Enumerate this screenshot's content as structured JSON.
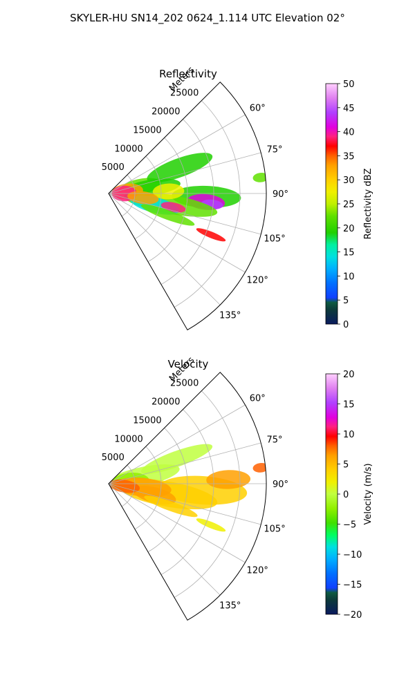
{
  "suptitle": "SKYLER-HU  SN14_202  0624_1.114 UTC Elevation 02°",
  "chart_data": [
    {
      "type": "heatmap",
      "projection": "polar-sector",
      "title": "Reflectivity",
      "range_label": "Meters",
      "range_max": 30000,
      "range_ticks": [
        5000,
        10000,
        15000,
        20000,
        25000
      ],
      "range_tick_labels": [
        "5000",
        "10000",
        "15000",
        "20000",
        "25000"
      ],
      "azimuth_range_deg": [
        45,
        150
      ],
      "azimuth_ticks": [
        60,
        75,
        90,
        105,
        120,
        135
      ],
      "azimuth_tick_labels": [
        "60°",
        "75°",
        "90°",
        "105°",
        "120°",
        "135°"
      ],
      "grid": true,
      "colorbar": {
        "label": "Reflectivity dBZ",
        "min": 0,
        "max": 50,
        "ticks": [
          0,
          5,
          10,
          15,
          20,
          25,
          30,
          35,
          40,
          45,
          50
        ],
        "tick_labels": [
          "0",
          "5",
          "10",
          "15",
          "20",
          "25",
          "30",
          "35",
          "40",
          "45",
          "50"
        ]
      }
    },
    {
      "type": "heatmap",
      "projection": "polar-sector",
      "title": "Velocity",
      "range_label": "Meters",
      "range_max": 30000,
      "range_ticks": [
        5000,
        10000,
        15000,
        20000,
        25000
      ],
      "range_tick_labels": [
        "5000",
        "10000",
        "15000",
        "20000",
        "25000"
      ],
      "azimuth_range_deg": [
        45,
        150
      ],
      "azimuth_ticks": [
        60,
        75,
        90,
        105,
        120,
        135
      ],
      "azimuth_tick_labels": [
        "60°",
        "75°",
        "90°",
        "105°",
        "120°",
        "135°"
      ],
      "grid": true,
      "colorbar": {
        "label": "Velocity (m/s)",
        "min": -20,
        "max": 20,
        "ticks": [
          -20,
          -15,
          -10,
          -5,
          0,
          5,
          10,
          15,
          20
        ],
        "tick_labels": [
          "−20",
          "−15",
          "−10",
          "−5",
          "0",
          "5",
          "10",
          "15",
          "20"
        ]
      }
    }
  ],
  "colors": {
    "reflectivity_scale": [
      "#0a1a5e",
      "#0c3a3a",
      "#0e5a40",
      "#1040ff",
      "#0070ff",
      "#00b0ff",
      "#00e0e0",
      "#00f0a0",
      "#20d000",
      "#60e000",
      "#a0f000",
      "#f0f000",
      "#ffd000",
      "#ffa000",
      "#ff6000",
      "#ff0000",
      "#ff2080",
      "#e000e0",
      "#b040ff",
      "#e080f0",
      "#ffd0ff"
    ],
    "velocity_scale": [
      "#0a1a5e",
      "#0c3a3a",
      "#0e5a40",
      "#1040ff",
      "#0070ff",
      "#00b0ff",
      "#00e0e0",
      "#00ff60",
      "#40e000",
      "#90f000",
      "#c0ff40",
      "#f0f000",
      "#ffd000",
      "#ffa000",
      "#ff6000",
      "#ff0000",
      "#ff2080",
      "#e000e0",
      "#b040ff",
      "#e080f0",
      "#ffd0ff"
    ]
  }
}
